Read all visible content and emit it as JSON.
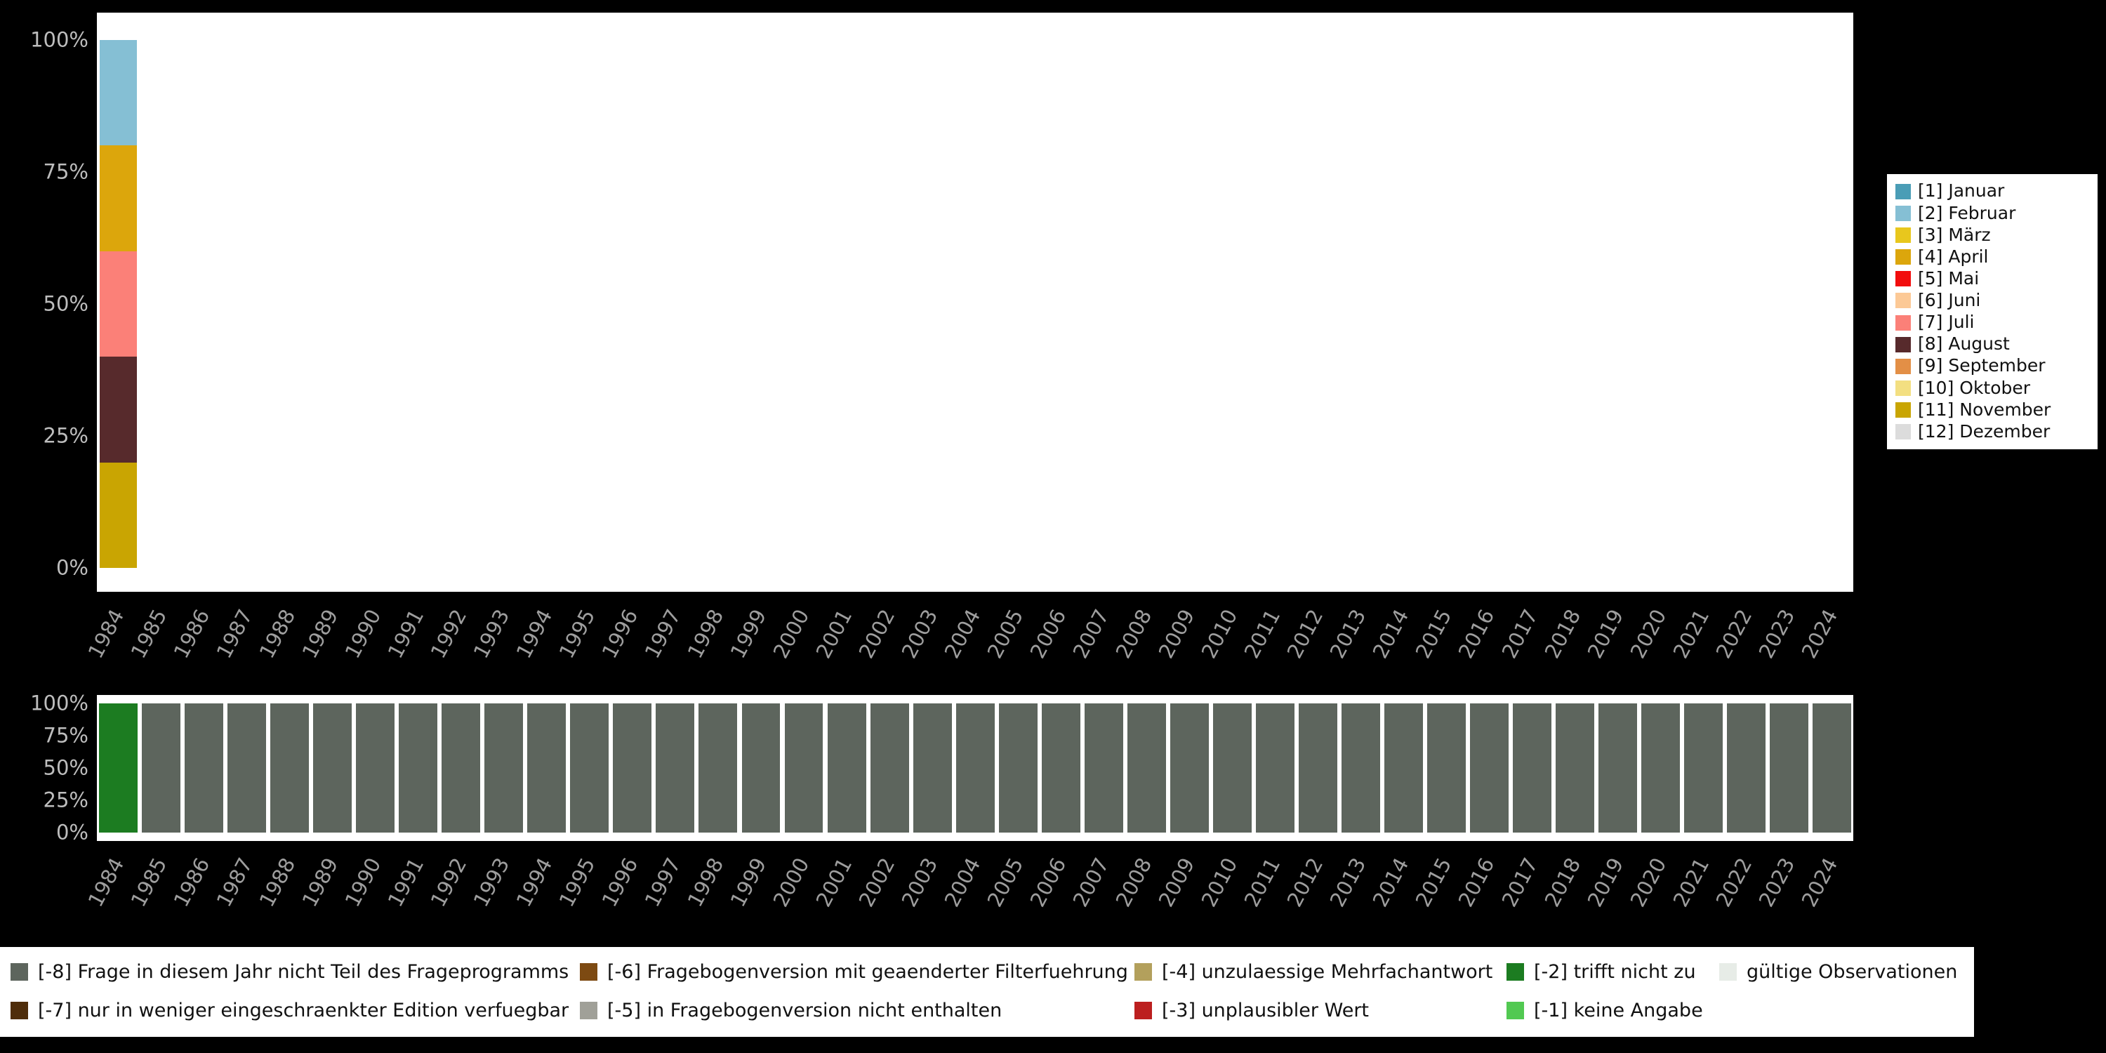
{
  "figure": {
    "background_color": "#000000",
    "plot_background_color": "#ffffff",
    "axis_text_color": "#9e9e9e"
  },
  "chart_data": [
    {
      "type": "bar",
      "stacked": true,
      "title": "",
      "xlabel": "",
      "ylabel": "",
      "ylim": [
        0,
        100
      ],
      "grid": false,
      "legend_position": "right",
      "yticks": [
        "100%",
        "75%",
        "50%",
        "25%",
        "0%"
      ],
      "categories": [
        "1984",
        "1985",
        "1986",
        "1987",
        "1988",
        "1989",
        "1990",
        "1991",
        "1992",
        "1993",
        "1994",
        "1995",
        "1996",
        "1997",
        "1998",
        "1999",
        "2000",
        "2001",
        "2002",
        "2003",
        "2004",
        "2005",
        "2006",
        "2007",
        "2008",
        "2009",
        "2010",
        "2011",
        "2012",
        "2013",
        "2014",
        "2015",
        "2016",
        "2017",
        "2018",
        "2019",
        "2020",
        "2021",
        "2022",
        "2023",
        "2024"
      ],
      "legend": [
        {
          "code": "1",
          "label": "[1] Januar",
          "color": "#4a9db6"
        },
        {
          "code": "2",
          "label": "[2] Februar",
          "color": "#85bfd4"
        },
        {
          "code": "3",
          "label": "[3] März",
          "color": "#e8c71d"
        },
        {
          "code": "4",
          "label": "[4] April",
          "color": "#dca60c"
        },
        {
          "code": "5",
          "label": "[5] Mai",
          "color": "#f20d0d"
        },
        {
          "code": "6",
          "label": "[6] Juni",
          "color": "#fcc996"
        },
        {
          "code": "7",
          "label": "[7] Juli",
          "color": "#fb8078"
        },
        {
          "code": "8",
          "label": "[8] August",
          "color": "#572a2c"
        },
        {
          "code": "9",
          "label": "[9] September",
          "color": "#e38f46"
        },
        {
          "code": "10",
          "label": "[10] Oktober",
          "color": "#f3df81"
        },
        {
          "code": "11",
          "label": "[11] November",
          "color": "#c9a502"
        },
        {
          "code": "12",
          "label": "[12] Dezember",
          "color": "#dcdcdc"
        }
      ],
      "bars": [
        [
          {
            "code": "11",
            "pct": 20
          },
          {
            "code": "8",
            "pct": 20
          },
          {
            "code": "7",
            "pct": 20
          },
          {
            "code": "4",
            "pct": 20
          },
          {
            "code": "2",
            "pct": 20
          }
        ],
        [],
        [],
        [],
        [],
        [],
        [],
        [],
        [],
        [],
        [],
        [],
        [],
        [],
        [],
        [],
        [],
        [],
        [],
        [],
        [],
        [],
        [],
        [],
        [],
        [],
        [],
        [],
        [],
        [],
        [],
        [],
        [],
        [],
        [],
        [],
        [],
        [],
        [],
        [],
        []
      ]
    },
    {
      "type": "bar",
      "stacked": true,
      "title": "",
      "xlabel": "",
      "ylabel": "",
      "ylim": [
        0,
        100
      ],
      "grid": false,
      "legend_position": "bottom",
      "yticks": [
        "100%",
        "75%",
        "50%",
        "25%",
        "0%"
      ],
      "categories": [
        "1984",
        "1985",
        "1986",
        "1987",
        "1988",
        "1989",
        "1990",
        "1991",
        "1992",
        "1993",
        "1994",
        "1995",
        "1996",
        "1997",
        "1998",
        "1999",
        "2000",
        "2001",
        "2002",
        "2003",
        "2004",
        "2005",
        "2006",
        "2007",
        "2008",
        "2009",
        "2010",
        "2011",
        "2012",
        "2013",
        "2014",
        "2015",
        "2016",
        "2017",
        "2018",
        "2019",
        "2020",
        "2021",
        "2022",
        "2023",
        "2024"
      ],
      "legend": [
        {
          "code": "-8",
          "label": "[-8] Frage in diesem Jahr nicht Teil des Frageprogramms",
          "color": "#5d655d"
        },
        {
          "code": "-7",
          "label": "[-7] nur in weniger eingeschraenkter Edition verfuegbar",
          "color": "#4f2d0a"
        },
        {
          "code": "-6",
          "label": "[-6] Fragebogenversion mit geaenderter Filterfuehrung",
          "color": "#7d4a12"
        },
        {
          "code": "-5",
          "label": "[-5] in Fragebogenversion nicht enthalten",
          "color": "#a0a098"
        },
        {
          "code": "-4",
          "label": "[-4] unzulaessige Mehrfachantwort",
          "color": "#b3a05c"
        },
        {
          "code": "-3",
          "label": "[-3] unplausibler Wert",
          "color": "#bc1f1f"
        },
        {
          "code": "-2",
          "label": "[-2] trifft nicht zu",
          "color": "#1c7c21"
        },
        {
          "code": "-1",
          "label": "[-1] keine Angabe",
          "color": "#52c952"
        },
        {
          "code": "valid",
          "label": "gültige Observationen",
          "color": "#e7ece7"
        }
      ],
      "bars": [
        [
          {
            "code": "-2",
            "pct": 100
          }
        ],
        [
          {
            "code": "-8",
            "pct": 100
          }
        ],
        [
          {
            "code": "-8",
            "pct": 100
          }
        ],
        [
          {
            "code": "-8",
            "pct": 100
          }
        ],
        [
          {
            "code": "-8",
            "pct": 100
          }
        ],
        [
          {
            "code": "-8",
            "pct": 100
          }
        ],
        [
          {
            "code": "-8",
            "pct": 100
          }
        ],
        [
          {
            "code": "-8",
            "pct": 100
          }
        ],
        [
          {
            "code": "-8",
            "pct": 100
          }
        ],
        [
          {
            "code": "-8",
            "pct": 100
          }
        ],
        [
          {
            "code": "-8",
            "pct": 100
          }
        ],
        [
          {
            "code": "-8",
            "pct": 100
          }
        ],
        [
          {
            "code": "-8",
            "pct": 100
          }
        ],
        [
          {
            "code": "-8",
            "pct": 100
          }
        ],
        [
          {
            "code": "-8",
            "pct": 100
          }
        ],
        [
          {
            "code": "-8",
            "pct": 100
          }
        ],
        [
          {
            "code": "-8",
            "pct": 100
          }
        ],
        [
          {
            "code": "-8",
            "pct": 100
          }
        ],
        [
          {
            "code": "-8",
            "pct": 100
          }
        ],
        [
          {
            "code": "-8",
            "pct": 100
          }
        ],
        [
          {
            "code": "-8",
            "pct": 100
          }
        ],
        [
          {
            "code": "-8",
            "pct": 100
          }
        ],
        [
          {
            "code": "-8",
            "pct": 100
          }
        ],
        [
          {
            "code": "-8",
            "pct": 100
          }
        ],
        [
          {
            "code": "-8",
            "pct": 100
          }
        ],
        [
          {
            "code": "-8",
            "pct": 100
          }
        ],
        [
          {
            "code": "-8",
            "pct": 100
          }
        ],
        [
          {
            "code": "-8",
            "pct": 100
          }
        ],
        [
          {
            "code": "-8",
            "pct": 100
          }
        ],
        [
          {
            "code": "-8",
            "pct": 100
          }
        ],
        [
          {
            "code": "-8",
            "pct": 100
          }
        ],
        [
          {
            "code": "-8",
            "pct": 100
          }
        ],
        [
          {
            "code": "-8",
            "pct": 100
          }
        ],
        [
          {
            "code": "-8",
            "pct": 100
          }
        ],
        [
          {
            "code": "-8",
            "pct": 100
          }
        ],
        [
          {
            "code": "-8",
            "pct": 100
          }
        ],
        [
          {
            "code": "-8",
            "pct": 100
          }
        ],
        [
          {
            "code": "-8",
            "pct": 100
          }
        ],
        [
          {
            "code": "-8",
            "pct": 100
          }
        ],
        [
          {
            "code": "-8",
            "pct": 100
          }
        ],
        [
          {
            "code": "-8",
            "pct": 100
          }
        ]
      ]
    }
  ]
}
